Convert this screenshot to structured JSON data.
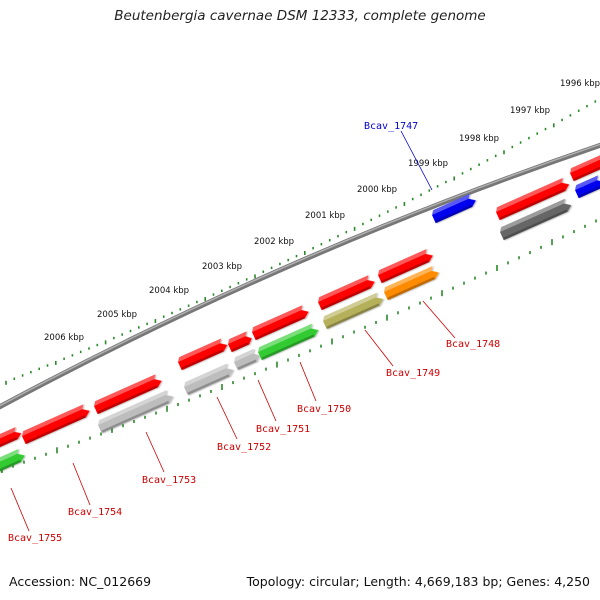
{
  "title": "Beutenbergia cavernae DSM 12333, complete genome",
  "footer": {
    "accession": "Accession: NC_012669",
    "summary": "Topology: circular; Length: 4,669,183 bp; Genes: 4,250"
  },
  "colors": {
    "background": "#ffffff",
    "backbone": "#8c8c8c",
    "tick": "#2a8a2a",
    "label_highlight": "#0000cc",
    "label_default": "#cc0000"
  },
  "kbp_labels": [
    "1996 kbp",
    "1997 kbp",
    "1998 kbp",
    "1999 kbp",
    "2000 kbp",
    "2001 kbp",
    "2002 kbp",
    "2003 kbp",
    "2004 kbp",
    "2005 kbp",
    "2006 kbp"
  ],
  "genes": [
    {
      "name": "Bcav_1747",
      "color": "#0000ee",
      "highlight": true
    },
    {
      "name": "Bcav_1748",
      "color": "#ff8c00",
      "highlight": false
    },
    {
      "name": "Bcav_1749",
      "color": "#b5b05a",
      "highlight": false
    },
    {
      "name": "Bcav_1750",
      "color": "#33cc33",
      "highlight": false
    },
    {
      "name": "Bcav_1751",
      "color": "#bdbdbd",
      "highlight": false
    },
    {
      "name": "Bcav_1752",
      "color": "#bdbdbd",
      "highlight": false
    },
    {
      "name": "Bcav_1753",
      "color": "#bdbdbd",
      "highlight": false
    },
    {
      "name": "Bcav_1754",
      "color": "#ff0000",
      "highlight": false
    },
    {
      "name": "Bcav_1755",
      "color": "#33cc33",
      "highlight": false
    }
  ]
}
